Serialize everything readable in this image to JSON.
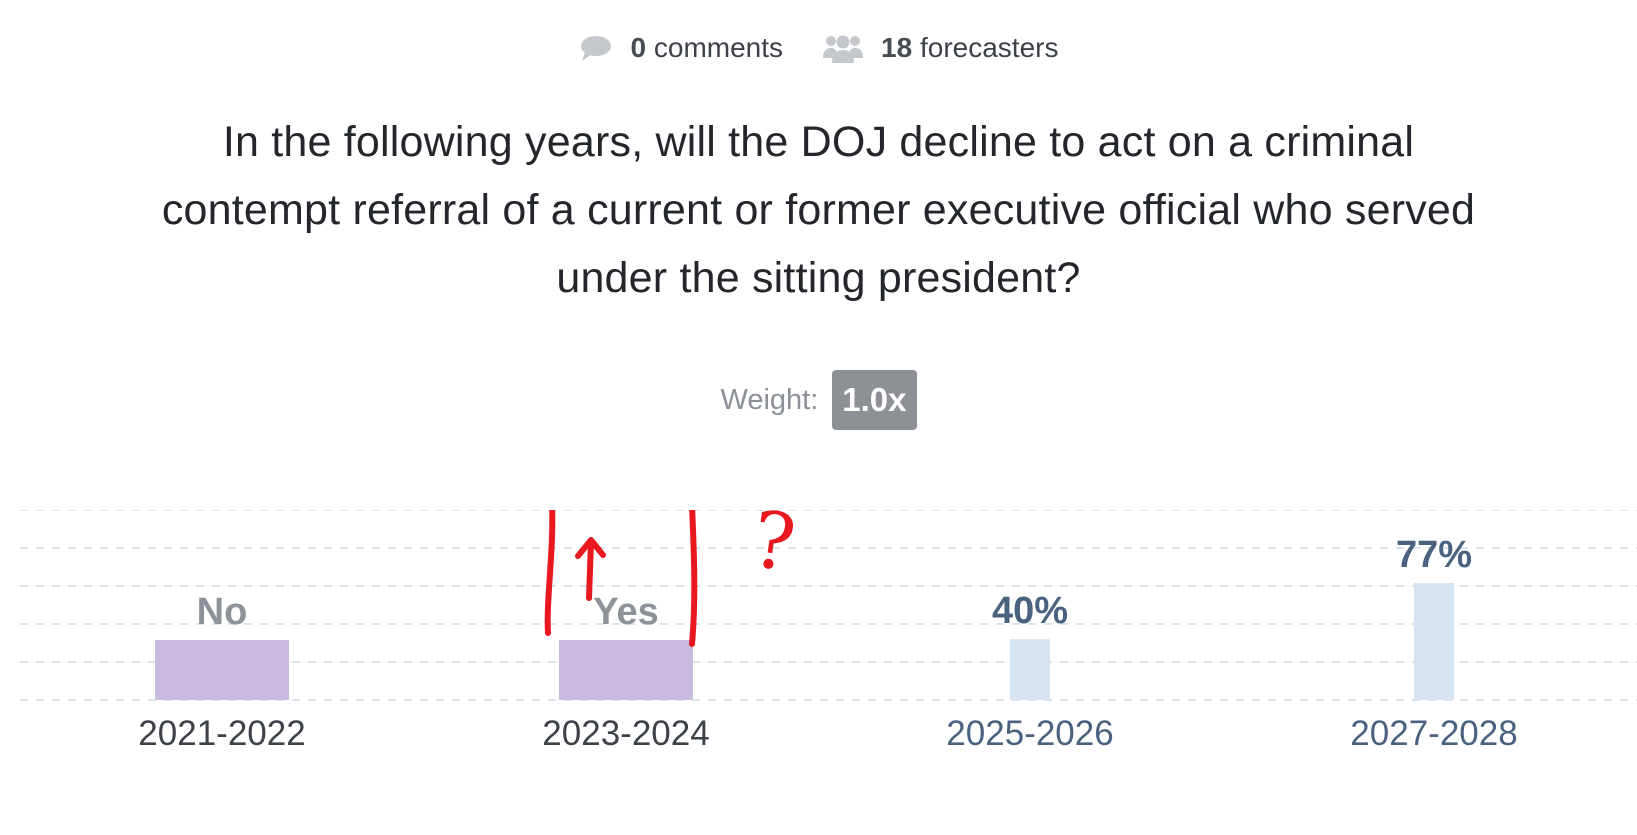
{
  "meta": {
    "comments_count": "0",
    "comments_label": "comments",
    "forecasters_count": "18",
    "forecasters_label": "forecasters",
    "comment_icon": "speech-bubble-icon",
    "forecasters_icon": "people-group-icon"
  },
  "question": {
    "text": "In the following years, will the DOJ decline to act on a criminal contempt referral of a current or former executive official who served under the sitting president?"
  },
  "weight": {
    "label": "Weight:",
    "value": "1.0x"
  },
  "colors": {
    "resolved_bar": "#c9badf",
    "open_bar": "#d6e3f0",
    "resolved_text": "#8e9399",
    "open_text": "#4b6180",
    "year_resolved": "#3d4148",
    "year_open": "#4b6180",
    "grid": "#d9e3ee",
    "annotation": "#e8191e"
  },
  "annotation": {
    "mark": "?"
  },
  "chart_data": {
    "type": "bar",
    "categories": [
      "2021-2022",
      "2023-2024",
      "2025-2026",
      "2027-2028"
    ],
    "bars": [
      {
        "category": "2021-2022",
        "label": "No",
        "status": "resolved",
        "value": null
      },
      {
        "category": "2023-2024",
        "label": "Yes",
        "status": "resolved",
        "value": null
      },
      {
        "category": "2025-2026",
        "label": "40%",
        "status": "open",
        "value": 40
      },
      {
        "category": "2027-2028",
        "label": "77%",
        "status": "open",
        "value": 77
      }
    ],
    "ylim": [
      0,
      100
    ],
    "grid": true
  }
}
